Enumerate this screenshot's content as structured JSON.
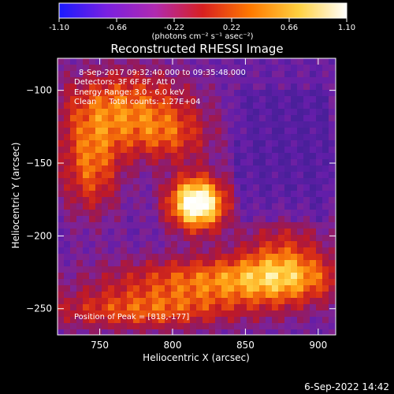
{
  "colorbar": {
    "ticks": [
      "-1.10",
      "-0.66",
      "-0.22",
      "0.22",
      "0.66",
      "1.10"
    ],
    "tick_values": [
      -1.1,
      -0.66,
      -0.22,
      0.22,
      0.66,
      1.1
    ],
    "range": [
      -1.1,
      1.1
    ],
    "units_label": "(photons cm⁻² s⁻¹ asec⁻²)",
    "colors": [
      "#1a1aff",
      "#7a20e0",
      "#b02ab0",
      "#d82020",
      "#ff7a00",
      "#ffd040",
      "#ffffff"
    ]
  },
  "title": "Reconstructed RHESSI Image",
  "annotations": {
    "time_range": "8-Sep-2017 09:32:40.000 to 09:35:48.000",
    "detectors": "Detectors: 3F 6F 8F, Att 0",
    "energy_range": "Energy Range: 3.0 - 6.0 keV",
    "clean_counts": "Clean     Total counts: 1.27E+04",
    "peak": "Position of Peak = [818,-177]"
  },
  "axes": {
    "xlabel": "Heliocentric X (arcsec)",
    "ylabel": "Heliocentric Y (arcsec)",
    "xlim": [
      721,
      912
    ],
    "ylim": [
      -268,
      -78
    ],
    "xticks": [
      {
        "v": 750,
        "label": "750"
      },
      {
        "v": 800,
        "label": "800"
      },
      {
        "v": 850,
        "label": "850"
      },
      {
        "v": 900,
        "label": "900"
      }
    ],
    "yticks": [
      {
        "v": -100,
        "label": "−100"
      },
      {
        "v": -150,
        "label": "−150"
      },
      {
        "v": -200,
        "label": "−200"
      },
      {
        "v": -250,
        "label": "−250"
      }
    ]
  },
  "peak_position": [
    818,
    -177
  ],
  "footer_date": "6-Sep-2022 14:42"
}
